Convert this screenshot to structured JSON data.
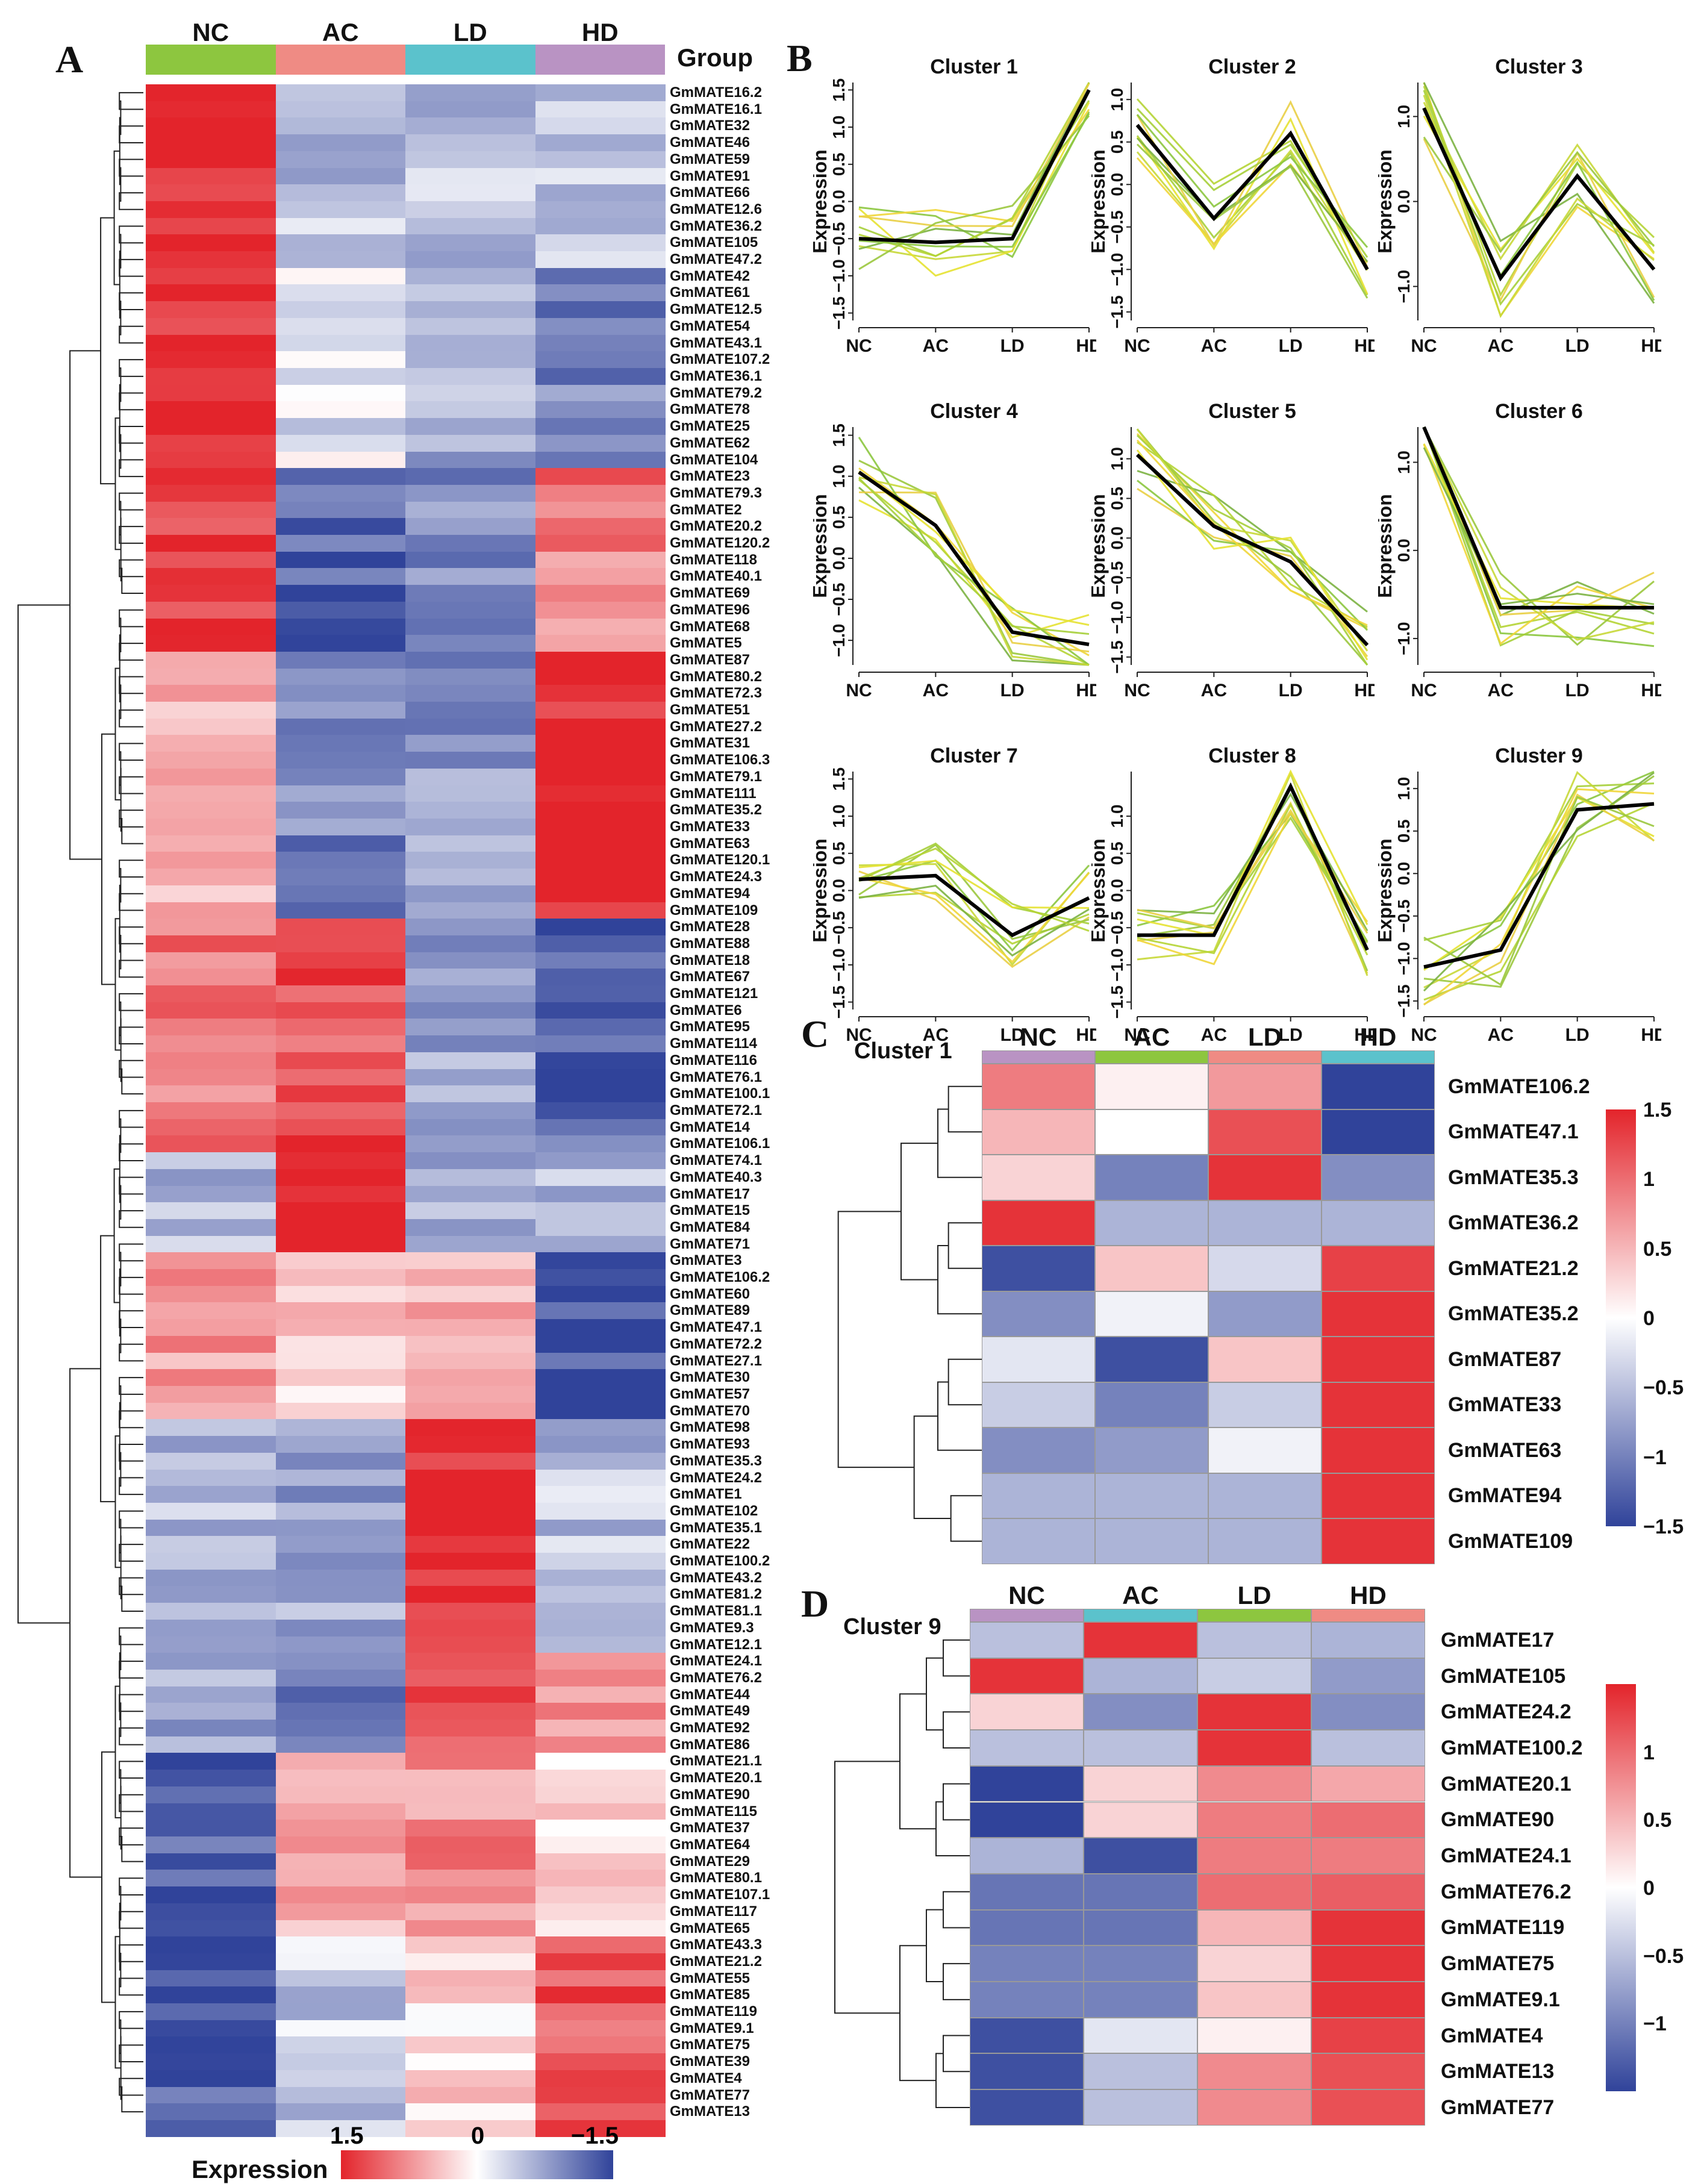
{
  "panels": {
    "A": "A",
    "B": "B",
    "C": "C",
    "D": "D"
  },
  "colors": {
    "high": "#e3242b",
    "mid": "#ffffff",
    "low": "#30439a",
    "NC": "#8dc63f",
    "AC": "#ef8b84",
    "LD": "#5bc2cc",
    "HD": "#b993c3",
    "line_green": "#7dbb3c",
    "line_yellow": "#e8e030",
    "centroid": "#000000"
  },
  "panel_a": {
    "groups": [
      "NC",
      "AC",
      "LD",
      "HD"
    ],
    "group_label": "Group",
    "legend": {
      "title": "Expression",
      "ticks": [
        "1.5",
        "0",
        "−1.5"
      ],
      "range": [
        1.5,
        -1.5
      ]
    },
    "genes": [
      "GmMATE16.2",
      "GmMATE16.1",
      "GmMATE32",
      "GmMATE46",
      "GmMATE59",
      "GmMATE91",
      "GmMATE66",
      "GmMATE12.6",
      "GmMATE36.2",
      "GmMATE105",
      "GmMATE47.2",
      "GmMATE42",
      "GmMATE61",
      "GmMATE12.5",
      "GmMATE54",
      "GmMATE43.1",
      "GmMATE107.2",
      "GmMATE36.1",
      "GmMATE79.2",
      "GmMATE78",
      "GmMATE25",
      "GmMATE62",
      "GmMATE104",
      "GmMATE23",
      "GmMATE79.3",
      "GmMATE2",
      "GmMATE20.2",
      "GmMATE120.2",
      "GmMATE118",
      "GmMATE40.1",
      "GmMATE69",
      "GmMATE96",
      "GmMATE68",
      "GmMATE5",
      "GmMATE87",
      "GmMATE80.2",
      "GmMATE72.3",
      "GmMATE51",
      "GmMATE27.2",
      "GmMATE31",
      "GmMATE106.3",
      "GmMATE79.1",
      "GmMATE111",
      "GmMATE35.2",
      "GmMATE33",
      "GmMATE63",
      "GmMATE120.1",
      "GmMATE24.3",
      "GmMATE94",
      "GmMATE109",
      "GmMATE28",
      "GmMATE88",
      "GmMATE18",
      "GmMATE67",
      "GmMATE121",
      "GmMATE6",
      "GmMATE95",
      "GmMATE114",
      "GmMATE116",
      "GmMATE76.1",
      "GmMATE100.1",
      "GmMATE72.1",
      "GmMATE14",
      "GmMATE106.1",
      "GmMATE74.1",
      "GmMATE40.3",
      "GmMATE17",
      "GmMATE15",
      "GmMATE84",
      "GmMATE71",
      "GmMATE3",
      "GmMATE106.2",
      "GmMATE60",
      "GmMATE89",
      "GmMATE47.1",
      "GmMATE72.2",
      "GmMATE27.1",
      "GmMATE30",
      "GmMATE57",
      "GmMATE70",
      "GmMATE98",
      "GmMATE93",
      "GmMATE35.3",
      "GmMATE24.2",
      "GmMATE1",
      "GmMATE102",
      "GmMATE35.1",
      "GmMATE22",
      "GmMATE100.2",
      "GmMATE43.2",
      "GmMATE81.2",
      "GmMATE81.1",
      "GmMATE9.3",
      "GmMATE12.1",
      "GmMATE24.1",
      "GmMATE76.2",
      "GmMATE44",
      "GmMATE49",
      "GmMATE92",
      "GmMATE86",
      "GmMATE21.1",
      "GmMATE20.1",
      "GmMATE90",
      "GmMATE115",
      "GmMATE37",
      "GmMATE64",
      "GmMATE29",
      "GmMATE80.1",
      "GmMATE107.1",
      "GmMATE117",
      "GmMATE65",
      "GmMATE43.3",
      "GmMATE21.2",
      "GmMATE55",
      "GmMATE85",
      "GmMATE119",
      "GmMATE9.1",
      "GmMATE75",
      "GmMATE39",
      "GmMATE4",
      "GmMATE77",
      "GmMATE13"
    ],
    "blocks": [
      {
        "from": 0,
        "to": 10,
        "v": [
          1.5,
          -0.5,
          -0.5,
          -0.5
        ]
      },
      {
        "from": 11,
        "to": 22,
        "v": [
          1.5,
          -0.2,
          -0.6,
          -1.0
        ]
      },
      {
        "from": 23,
        "to": 33,
        "v": [
          1.4,
          -1.2,
          -0.9,
          0.9
        ]
      },
      {
        "from": 34,
        "to": 49,
        "v": [
          0.6,
          -1.0,
          -0.8,
          1.5
        ]
      },
      {
        "from": 50,
        "to": 63,
        "v": [
          0.9,
          1.2,
          -0.7,
          -1.2
        ]
      },
      {
        "from": 64,
        "to": 69,
        "v": [
          -0.6,
          1.5,
          -0.6,
          -0.6
        ]
      },
      {
        "from": 70,
        "to": 79,
        "v": [
          0.7,
          0.3,
          0.6,
          -1.4
        ]
      },
      {
        "from": 80,
        "to": 93,
        "v": [
          -0.5,
          -0.7,
          1.5,
          -0.5
        ]
      },
      {
        "from": 94,
        "to": 99,
        "v": [
          -0.7,
          -1.1,
          1.2,
          0.7
        ]
      },
      {
        "from": 100,
        "to": 110,
        "v": [
          -1.3,
          0.6,
          0.8,
          0.3
        ]
      },
      {
        "from": 111,
        "to": 122,
        "v": [
          -1.3,
          -0.4,
          0.3,
          1.2
        ]
      }
    ]
  },
  "chart_data": [
    {
      "type": "line",
      "title": "Cluster 1",
      "x": [
        "NC",
        "AC",
        "LD",
        "HD"
      ],
      "ylabel": "Expression",
      "yticks": [
        "1.5",
        "1.0",
        "0.5",
        "0.0",
        "−0.5",
        "−1.0",
        "−1.5"
      ],
      "ytick_values": [
        1.5,
        1.0,
        0.5,
        0.0,
        -0.5,
        -1.0,
        -1.5
      ],
      "ylim": [
        -1.6,
        1.6
      ],
      "centroid": [
        -0.5,
        -0.55,
        -0.5,
        1.5
      ]
    },
    {
      "type": "line",
      "title": "Cluster 2",
      "x": [
        "NC",
        "AC",
        "LD",
        "HD"
      ],
      "ylabel": "Expression",
      "yticks": [
        "1.0",
        "0.5",
        "0.0",
        "−0.5",
        "−1.0",
        "−1.5"
      ],
      "ytick_values": [
        1.0,
        0.5,
        0.0,
        -0.5,
        -1.0,
        -1.5
      ],
      "ylim": [
        -1.6,
        1.2
      ],
      "centroid": [
        0.7,
        -0.4,
        0.6,
        -1.0
      ]
    },
    {
      "type": "line",
      "title": "Cluster 3",
      "x": [
        "NC",
        "AC",
        "LD",
        "HD"
      ],
      "ylabel": "Expression",
      "yticks": [
        "1.0",
        "0.0",
        "−1.0"
      ],
      "ytick_values": [
        1.0,
        0.0,
        -1.0
      ],
      "ylim": [
        -1.4,
        1.4
      ],
      "centroid": [
        1.1,
        -0.9,
        0.3,
        -0.8
      ]
    },
    {
      "type": "line",
      "title": "Cluster 4",
      "x": [
        "NC",
        "AC",
        "LD",
        "HD"
      ],
      "ylabel": "Expression",
      "yticks": [
        "1.5",
        "1.0",
        "0.5",
        "0.0",
        "−0.5",
        "−1.0"
      ],
      "ytick_values": [
        1.5,
        1.0,
        0.5,
        0.0,
        -0.5,
        -1.0
      ],
      "ylim": [
        -1.3,
        1.6
      ],
      "centroid": [
        1.05,
        0.4,
        -0.9,
        -1.05
      ]
    },
    {
      "type": "line",
      "title": "Cluster 5",
      "x": [
        "NC",
        "AC",
        "LD",
        "HD"
      ],
      "ylabel": "Expression",
      "yticks": [
        "1.0",
        "0.5",
        "0.0",
        "−0.5",
        "−1.0",
        "−1.5"
      ],
      "ytick_values": [
        1.0,
        0.5,
        0.0,
        -0.5,
        -1.0,
        -1.5
      ],
      "ylim": [
        -1.6,
        1.4
      ],
      "centroid": [
        1.05,
        0.15,
        -0.3,
        -1.35
      ]
    },
    {
      "type": "line",
      "title": "Cluster 6",
      "x": [
        "NC",
        "AC",
        "LD",
        "HD"
      ],
      "ylabel": "Expression",
      "yticks": [
        "1.0",
        "0.0",
        "−1.0"
      ],
      "ytick_values": [
        1.0,
        0.0,
        -1.0
      ],
      "ylim": [
        -1.3,
        1.4
      ],
      "centroid": [
        1.4,
        -0.65,
        -0.65,
        -0.65
      ]
    },
    {
      "type": "line",
      "title": "Cluster 7",
      "x": [
        "NC",
        "AC",
        "LD",
        "HD"
      ],
      "ylabel": "Expression",
      "yticks": [
        "1.5",
        "1.0",
        "0.5",
        "0.0",
        "−0.5",
        "−1.0",
        "−1.5"
      ],
      "ytick_values": [
        1.5,
        1.0,
        0.5,
        0.0,
        -0.5,
        -1.0,
        -1.5
      ],
      "ylim": [
        -1.6,
        1.6
      ],
      "centroid": [
        0.15,
        0.2,
        -0.6,
        -0.1
      ]
    },
    {
      "type": "line",
      "title": "Cluster 8",
      "x": [
        "NC",
        "AC",
        "LD",
        "HD"
      ],
      "ylabel": "Expression",
      "yticks": [
        "1.0",
        "0.5",
        "0.0",
        "−0.5",
        "−1.0",
        "−1.5"
      ],
      "ytick_values": [
        1.0,
        0.5,
        0.0,
        -0.5,
        -1.0,
        -1.5
      ],
      "ylim": [
        -1.6,
        1.6
      ],
      "centroid": [
        -0.6,
        -0.6,
        1.4,
        -0.8
      ]
    },
    {
      "type": "line",
      "title": "Cluster 9",
      "x": [
        "NC",
        "AC",
        "LD",
        "HD"
      ],
      "ylabel": "Expression",
      "yticks": [
        "1.0",
        "0.5",
        "0.0",
        "−0.5",
        "−1.0",
        "−1.5"
      ],
      "ytick_values": [
        1.0,
        0.5,
        0.0,
        -0.5,
        -1.0,
        -1.5
      ],
      "ylim": [
        -1.6,
        1.2
      ],
      "centroid": [
        -1.1,
        -0.9,
        0.75,
        0.82
      ]
    },
    {
      "type": "heatmap",
      "title": "Cluster 1",
      "columns": [
        "NC",
        "AC",
        "LD",
        "HD"
      ],
      "rows": [
        "GmMATE106.2",
        "GmMATE47.1",
        "GmMATE35.3",
        "GmMATE36.2",
        "GmMATE21.2",
        "GmMATE35.2",
        "GmMATE87",
        "GmMATE33",
        "GmMATE63",
        "GmMATE94",
        "GmMATE109"
      ],
      "values": [
        [
          0.9,
          0.1,
          0.7,
          -1.5
        ],
        [
          0.5,
          0.0,
          1.2,
          -1.5
        ],
        [
          0.3,
          -1.0,
          1.4,
          -0.9
        ],
        [
          1.4,
          -0.6,
          -0.6,
          -0.6
        ],
        [
          -1.4,
          0.4,
          -0.3,
          1.3
        ],
        [
          -0.9,
          -0.1,
          -0.8,
          1.4
        ],
        [
          -0.2,
          -1.4,
          0.4,
          1.4
        ],
        [
          -0.4,
          -1.0,
          -0.4,
          1.4
        ],
        [
          -0.9,
          -0.8,
          -0.1,
          1.4
        ],
        [
          -0.6,
          -0.6,
          -0.6,
          1.4
        ],
        [
          -0.6,
          -0.6,
          -0.6,
          1.4
        ]
      ],
      "legend_ticks": [
        "1.5",
        "1",
        "0.5",
        "0",
        "−0.5",
        "−1",
        "−1.5"
      ],
      "legend_values": [
        1.5,
        1,
        0.5,
        0,
        -0.5,
        -1,
        -1.5
      ]
    },
    {
      "type": "heatmap",
      "title": "Cluster 9",
      "columns": [
        "NC",
        "AC",
        "LD",
        "HD"
      ],
      "rows": [
        "GmMATE17",
        "GmMATE105",
        "GmMATE24.2",
        "GmMATE100.2",
        "GmMATE20.1",
        "GmMATE90",
        "GmMATE24.1",
        "GmMATE76.2",
        "GmMATE119",
        "GmMATE75",
        "GmMATE9.1",
        "GmMATE4",
        "GmMATE13",
        "GmMATE77"
      ],
      "values": [
        [
          -0.5,
          1.4,
          -0.5,
          -0.6
        ],
        [
          1.4,
          -0.6,
          -0.4,
          -0.8
        ],
        [
          0.3,
          -0.9,
          1.4,
          -0.9
        ],
        [
          -0.5,
          -0.5,
          1.4,
          -0.5
        ],
        [
          -1.5,
          0.3,
          0.8,
          0.6
        ],
        [
          -1.5,
          0.3,
          0.9,
          1.0
        ],
        [
          -0.6,
          -1.4,
          0.9,
          0.9
        ],
        [
          -1.1,
          -1.1,
          1.0,
          1.1
        ],
        [
          -1.1,
          -1.1,
          0.5,
          1.4
        ],
        [
          -1.0,
          -1.0,
          0.3,
          1.4
        ],
        [
          -1.0,
          -1.0,
          0.4,
          1.4
        ],
        [
          -1.4,
          -0.2,
          0.1,
          1.3
        ],
        [
          -1.4,
          -0.5,
          0.8,
          1.2
        ],
        [
          -1.4,
          -0.5,
          0.8,
          1.2
        ]
      ],
      "legend_ticks": [
        "1",
        "0.5",
        "0",
        "−0.5",
        "−1"
      ],
      "legend_values": [
        1,
        0.5,
        0,
        -0.5,
        -1
      ]
    }
  ]
}
